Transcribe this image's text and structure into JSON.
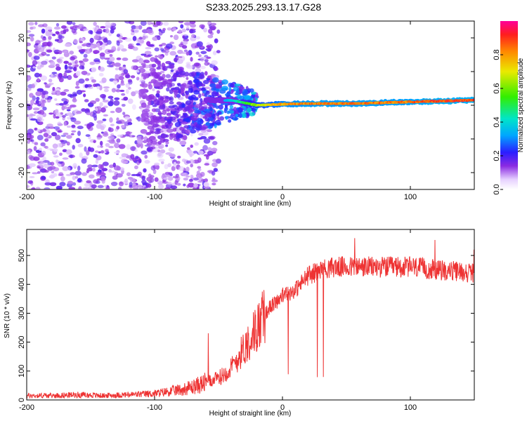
{
  "title": "S233.2025.293.13.17.G28",
  "chart_data": [
    {
      "type": "heatmap",
      "title": "S233.2025.293.13.17.G28",
      "xlabel": "Height of straight line (km)",
      "ylabel": "Frequency (Hz)",
      "xlim": [
        -200,
        150
      ],
      "ylim": [
        -25,
        25
      ],
      "xticks": [
        -200,
        -100,
        0,
        100
      ],
      "yticks": [
        -20,
        -10,
        0,
        10,
        20
      ],
      "colorbar": {
        "label": "Normalized spectral amplitude",
        "range": [
          0,
          1
        ],
        "ticks": [
          0.0,
          0.2,
          0.4,
          0.6,
          0.8
        ]
      },
      "signal_ridge": {
        "x": [
          -60,
          -40,
          -20,
          0,
          20,
          40,
          60,
          80,
          100,
          120,
          150
        ],
        "frequency": [
          1.5,
          1.5,
          0.0,
          0.3,
          0.5,
          0.5,
          0.5,
          0.8,
          1.0,
          1.2,
          1.5
        ],
        "amplitude": [
          0.2,
          0.4,
          0.7,
          0.85,
          0.9,
          0.9,
          0.9,
          0.9,
          0.9,
          0.95,
          0.95
        ]
      }
    },
    {
      "type": "line",
      "xlabel": "Height of straight line (km)",
      "ylabel": "SNR (10 * v/v)",
      "xlim": [
        -200,
        150
      ],
      "ylim": [
        0,
        590
      ],
      "xticks": [
        -200,
        -100,
        0,
        100
      ],
      "yticks": [
        0,
        100,
        200,
        300,
        400,
        500
      ],
      "series": [
        {
          "name": "SNR",
          "color": "#ee3333",
          "x": [
            -200,
            -180,
            -160,
            -140,
            -120,
            -100,
            -80,
            -70,
            -60,
            -50,
            -40,
            -30,
            -20,
            -10,
            0,
            10,
            20,
            30,
            40,
            60,
            80,
            100,
            120,
            150
          ],
          "values": [
            15,
            15,
            18,
            15,
            18,
            22,
            35,
            45,
            60,
            75,
            110,
            180,
            250,
            320,
            360,
            380,
            430,
            450,
            460,
            460,
            460,
            460,
            450,
            440
          ]
        }
      ]
    }
  ]
}
